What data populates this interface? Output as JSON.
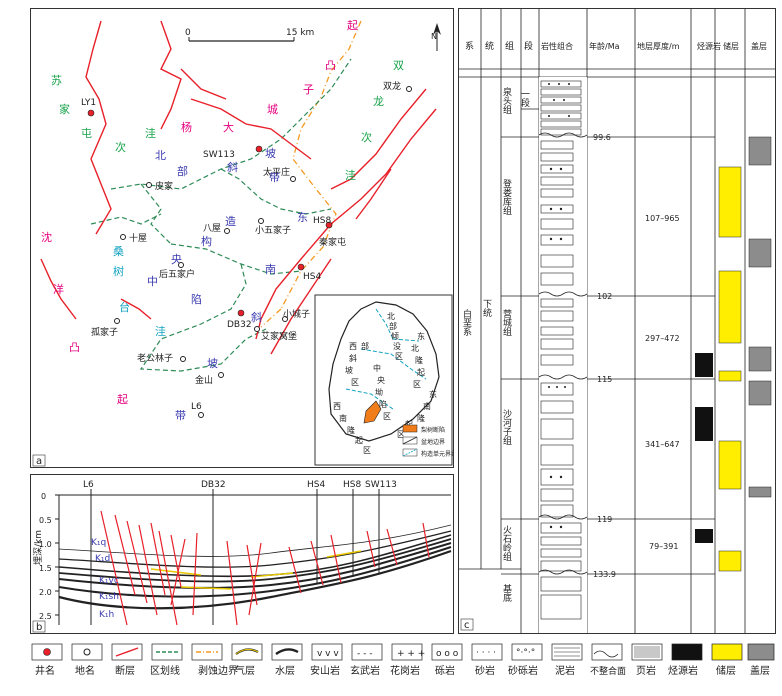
{
  "panel_a": {
    "letter": "a",
    "scale": {
      "zero": "0",
      "end": "15 km"
    },
    "north_label": "N",
    "units": [
      {
        "text": "起",
        "color": "#e4007f"
      },
      {
        "text": "凸",
        "color": "#e4007f"
      },
      {
        "text": "子",
        "color": "#e4007f"
      },
      {
        "text": "城",
        "color": "#e4007f"
      },
      {
        "text": "大",
        "color": "#e4007f"
      },
      {
        "text": "杨",
        "color": "#e4007f"
      },
      {
        "text": "双",
        "color": "#18a34a"
      },
      {
        "text": "龙",
        "color": "#18a34a"
      },
      {
        "text": "次",
        "color": "#18a34a"
      },
      {
        "text": "洼",
        "color": "#18a34a"
      },
      {
        "text": "苏",
        "color": "#18a34a"
      },
      {
        "text": "家",
        "color": "#18a34a"
      },
      {
        "text": "屯",
        "color": "#18a34a"
      },
      {
        "text": "次",
        "color": "#18a34a"
      },
      {
        "text": "洼",
        "color": "#18a34a"
      },
      {
        "text": "带",
        "color": "#3b3bb0"
      },
      {
        "text": "坡",
        "color": "#3b3bb0"
      },
      {
        "text": "斜",
        "color": "#3b3bb0"
      },
      {
        "text": "部",
        "color": "#3b3bb0"
      },
      {
        "text": "北",
        "color": "#3b3bb0"
      },
      {
        "text": "造",
        "color": "#3b3bb0"
      },
      {
        "text": "构",
        "color": "#3b3bb0"
      },
      {
        "text": "央",
        "color": "#3b3bb0"
      },
      {
        "text": "中",
        "color": "#3b3bb0"
      },
      {
        "text": "东",
        "color": "#3b3bb0"
      },
      {
        "text": "南",
        "color": "#3b3bb0"
      },
      {
        "text": "桑",
        "color": "#14a3c2"
      },
      {
        "text": "树",
        "color": "#14a3c2"
      },
      {
        "text": "台",
        "color": "#14a3c2"
      },
      {
        "text": "洼",
        "color": "#14a3c2"
      },
      {
        "text": "陷",
        "color": "#3b3bb0"
      },
      {
        "text": "斜",
        "color": "#3b3bb0"
      },
      {
        "text": "坡",
        "color": "#3b3bb0"
      },
      {
        "text": "带",
        "color": "#3b3bb0"
      },
      {
        "text": "沈",
        "color": "#e4007f"
      },
      {
        "text": "洋",
        "color": "#e4007f"
      },
      {
        "text": "凸",
        "color": "#e4007f"
      },
      {
        "text": "起",
        "color": "#e4007f"
      }
    ],
    "places": [
      {
        "name": "双龙"
      },
      {
        "name": "太平庄"
      },
      {
        "name": "皮家"
      },
      {
        "name": "八屋"
      },
      {
        "name": "小五家子"
      },
      {
        "name": "十屋"
      },
      {
        "name": "后五家户"
      },
      {
        "name": "孤家子"
      },
      {
        "name": "老公林子"
      },
      {
        "name": "金山"
      },
      {
        "name": "小城子"
      },
      {
        "name": "艾家窝堡"
      },
      {
        "name": "秦家屯"
      }
    ],
    "wells": [
      {
        "name": "LY1"
      },
      {
        "name": "SW113"
      },
      {
        "name": "HS8"
      },
      {
        "name": "HS4"
      },
      {
        "name": "DB32"
      },
      {
        "name": "L6"
      }
    ],
    "inset": {
      "chars": [
        "北",
        "部",
        "倾",
        "没",
        "区",
        "东",
        "北",
        "隆",
        "起",
        "区",
        "西",
        "部",
        "斜",
        "坡",
        "区",
        "中",
        "央",
        "坳",
        "陷",
        "区",
        "东",
        "南",
        "隆",
        "起",
        "区",
        "西",
        "南",
        "隆",
        "起",
        "区"
      ],
      "legend": [
        "梨树断陷",
        "盆地边界",
        "构造单元界线"
      ]
    }
  },
  "panel_b": {
    "letter": "b",
    "depth_label": "埋深/km",
    "depth_ticks": [
      "0",
      "0.5",
      "1.0",
      "1.5",
      "2.0",
      "2.5"
    ],
    "wells": [
      "L6",
      "DB32",
      "HS4",
      "HS8",
      "SW113"
    ],
    "strata": [
      "K₁q",
      "K₁d",
      "K₁yc",
      "K₁sh",
      "K₁h"
    ]
  },
  "panel_c": {
    "letter": "c",
    "headers": [
      "系",
      "统",
      "组",
      "段",
      "岩性组合",
      "年龄/Ma",
      "地层厚度/m",
      "烃源岩",
      "储层",
      "盖层"
    ],
    "system": "白垩系",
    "series": "下统",
    "formations": [
      "泉头组",
      "登娄库组",
      "营城组",
      "沙河子组",
      "火石岭组",
      "基底"
    ],
    "member": "一段",
    "ages": [
      "99.6",
      "102",
      "115",
      "119",
      "133.9"
    ],
    "thickness": [
      "107–965",
      "297–472",
      "341–647",
      "79–391"
    ]
  },
  "legend": {
    "items": [
      "井名",
      "地名",
      "断层",
      "区划线",
      "剥蚀边界",
      "气层",
      "水层",
      "安山岩",
      "玄武岩",
      "花岗岩",
      "砾岩",
      "砂岩",
      "砂砾岩",
      "泥岩",
      "页岩",
      "不整合面",
      "烃源岩",
      "储层",
      "盖层"
    ]
  },
  "colors": {
    "source_rock": "#111111",
    "reservoir": "#ffee00",
    "cap": "#8c8c8c",
    "fault": "#e8202a",
    "boundary": "#f59a23",
    "division": "#2e8b57"
  }
}
